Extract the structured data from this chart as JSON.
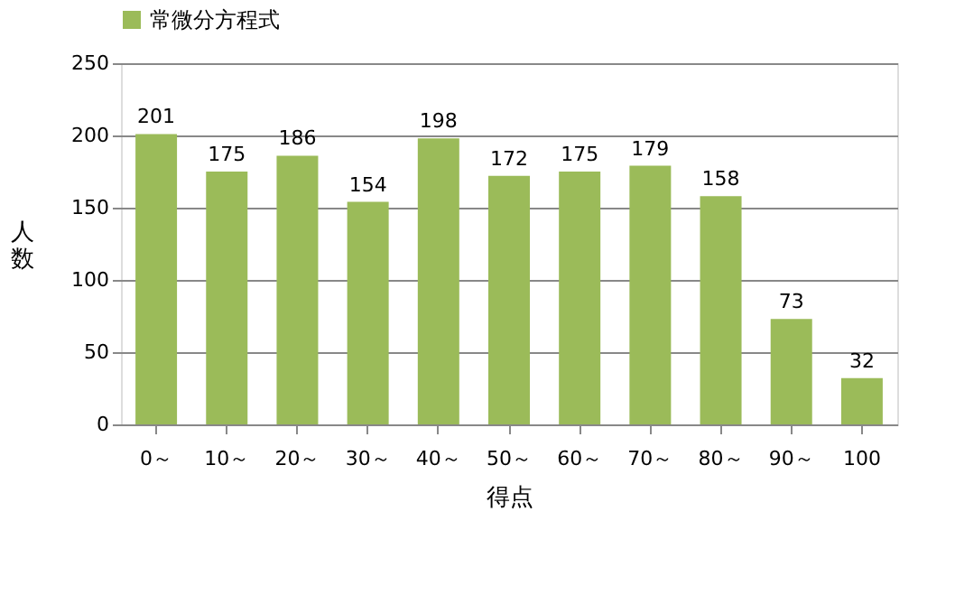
{
  "chart_data": {
    "type": "bar",
    "categories": [
      "0～",
      "10～",
      "20～",
      "30～",
      "40～",
      "50～",
      "60～",
      "70～",
      "80～",
      "90～",
      "100"
    ],
    "series": [
      {
        "name": "常微分方程式",
        "color": "#9bbb59",
        "values": [
          201,
          175,
          186,
          154,
          198,
          172,
          175,
          179,
          158,
          73,
          32
        ]
      }
    ],
    "xlabel": "得点",
    "ylabel": "人数",
    "ylim": [
      0,
      250
    ],
    "yticks": [
      0,
      50,
      100,
      150,
      200,
      250
    ],
    "grid": "y",
    "legend": "top",
    "data_labels": true
  }
}
